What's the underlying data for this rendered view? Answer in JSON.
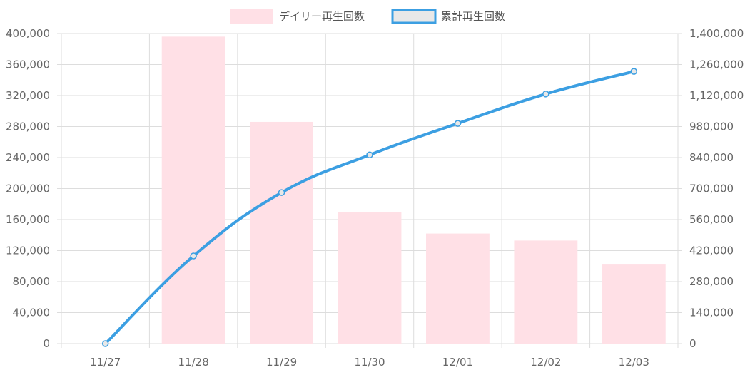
{
  "colors": {
    "bar_fill": "#ffe0e6",
    "line": "#3c9fe2",
    "grid": "#dddddd",
    "axis_text": "#666666"
  },
  "legend": {
    "bar_label": "デイリー再生回数",
    "line_label": "累計再生回数"
  },
  "chart_data": {
    "type": "bar",
    "categories": [
      "11/27",
      "11/28",
      "11/29",
      "11/30",
      "12/01",
      "12/02",
      "12/03"
    ],
    "series": [
      {
        "name": "デイリー再生回数",
        "type": "bar",
        "axis": "left",
        "values": [
          0,
          396000,
          286000,
          170000,
          142000,
          133000,
          102000
        ]
      },
      {
        "name": "累計再生回数",
        "type": "line",
        "axis": "right",
        "values": [
          0,
          396000,
          682000,
          852000,
          994000,
          1127000,
          1229000
        ]
      }
    ],
    "left_axis": {
      "ylim": [
        0,
        400000
      ],
      "ticks": [
        "0",
        "40,000",
        "80,000",
        "120,000",
        "160,000",
        "200,000",
        "240,000",
        "280,000",
        "320,000",
        "360,000",
        "400,000"
      ]
    },
    "right_axis": {
      "ylim": [
        0,
        1400000
      ],
      "ticks": [
        "0",
        "140,000",
        "280,000",
        "420,000",
        "560,000",
        "700,000",
        "840,000",
        "980,000",
        "1,120,000",
        "1,260,000",
        "1,400,000"
      ]
    },
    "grid": true,
    "legend_position": "top-center"
  }
}
